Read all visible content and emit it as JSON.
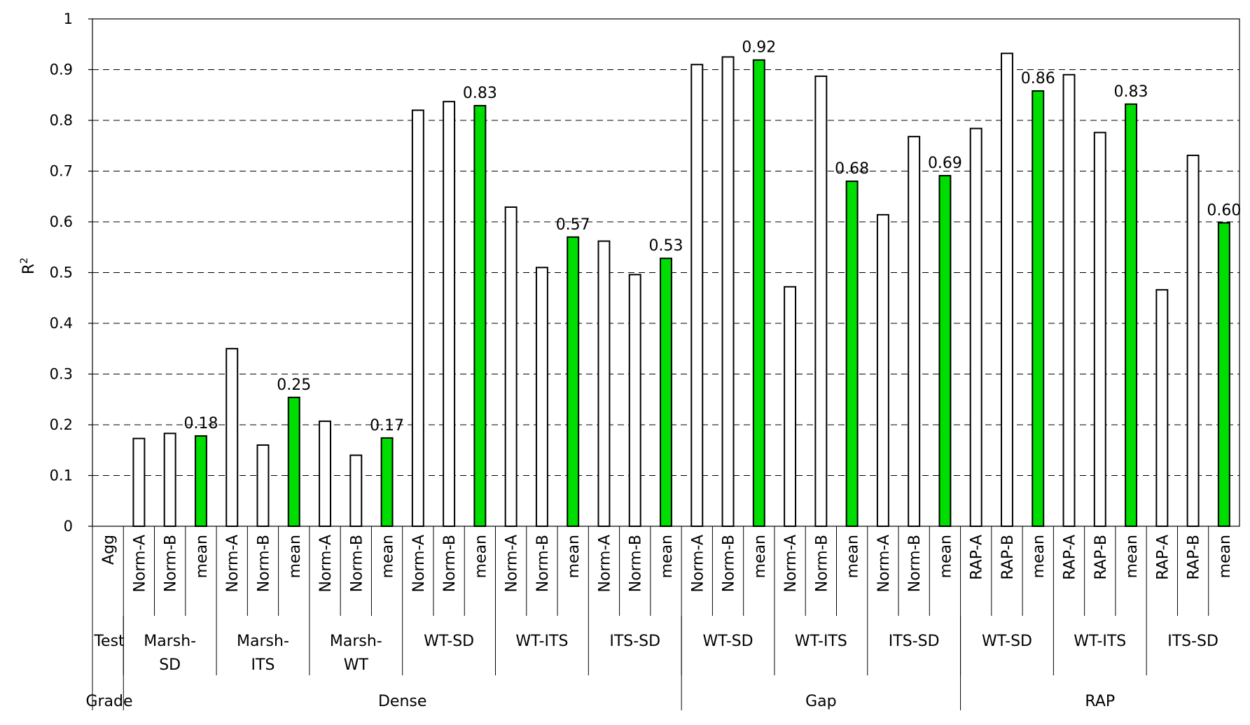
{
  "chart_data": {
    "type": "bar",
    "ylabel": "R",
    "ylabel_superscript": "2",
    "ylim": [
      0,
      1
    ],
    "yticks": [
      "0",
      "0.1",
      "0.2",
      "0.3",
      "0.4",
      "0.5",
      "0.6",
      "0.7",
      "0.8",
      "0.9",
      "1"
    ],
    "grid": "horizontal dashed",
    "colors": {
      "norm": "#ffffff",
      "mean": "#00dd00",
      "outline": "#000000"
    },
    "row_headers": {
      "test": "Test",
      "grade": "Grade"
    },
    "categories": [
      "Agg",
      "Norm-A",
      "Norm-B",
      "mean",
      "Norm-A",
      "Norm-B",
      "mean",
      "Norm-A",
      "Norm-B",
      "mean",
      "Norm-A",
      "Norm-B",
      "mean",
      "Norm-A",
      "Norm-B",
      "mean",
      "Norm-A",
      "Norm-B",
      "mean",
      "Norm-A",
      "Norm-B",
      "mean",
      "Norm-A",
      "Norm-B",
      "mean",
      "Norm-A",
      "Norm-B",
      "mean",
      "RAP-A",
      "RAP-B",
      "mean",
      "RAP-A",
      "RAP-B",
      "mean",
      "RAP-A",
      "RAP-B",
      "mean"
    ],
    "values": [
      null,
      0.173,
      0.183,
      0.178,
      0.35,
      0.16,
      0.254,
      0.207,
      0.14,
      0.174,
      0.82,
      0.837,
      0.829,
      0.629,
      0.51,
      0.57,
      0.562,
      0.496,
      0.528,
      0.91,
      0.925,
      0.919,
      0.472,
      0.887,
      0.68,
      0.614,
      0.768,
      0.691,
      0.784,
      0.932,
      0.858,
      0.89,
      0.776,
      0.832,
      0.466,
      0.731,
      0.598
    ],
    "data_labels": [
      "",
      "",
      "",
      "0.18",
      "",
      "",
      "0.25",
      "",
      "",
      "0.17",
      "",
      "",
      "0.83",
      "",
      "",
      "0.57",
      "",
      "",
      "0.53",
      "",
      "",
      "0.92",
      "",
      "",
      "0.68",
      "",
      "",
      "0.69",
      "",
      "",
      "0.86",
      "",
      "",
      "0.83",
      "",
      "",
      "0.60"
    ],
    "tests": [
      {
        "label": "Marsh-\nSD",
        "start": 1,
        "span": 3
      },
      {
        "label": "Marsh-\nITS",
        "start": 4,
        "span": 3
      },
      {
        "label": "Marsh-\nWT",
        "start": 7,
        "span": 3
      },
      {
        "label": "WT-SD",
        "start": 10,
        "span": 3
      },
      {
        "label": "WT-ITS",
        "start": 13,
        "span": 3
      },
      {
        "label": "ITS-SD",
        "start": 16,
        "span": 3
      },
      {
        "label": "WT-SD",
        "start": 19,
        "span": 3
      },
      {
        "label": "WT-ITS",
        "start": 22,
        "span": 3
      },
      {
        "label": "ITS-SD",
        "start": 25,
        "span": 3
      },
      {
        "label": "WT-SD",
        "start": 28,
        "span": 3
      },
      {
        "label": "WT-ITS",
        "start": 31,
        "span": 3
      },
      {
        "label": "ITS-SD",
        "start": 34,
        "span": 3
      }
    ],
    "grades": [
      {
        "label": "Dense",
        "start": 1,
        "span": 18
      },
      {
        "label": "Gap",
        "start": 19,
        "span": 9
      },
      {
        "label": "RAP",
        "start": 28,
        "span": 9
      }
    ]
  }
}
